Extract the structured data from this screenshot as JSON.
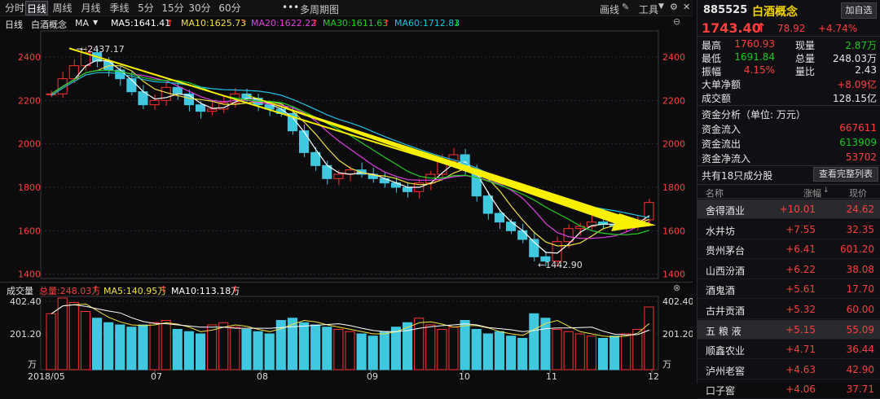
{
  "toolbar": {
    "tabs": [
      "分时",
      "日线",
      "周线",
      "月线",
      "季线",
      "5分",
      "15分",
      "30分",
      "60分"
    ],
    "active_tab": "日线",
    "more_icon": "ellipsis-icon",
    "multi_period": "多周期图",
    "draw_line": "画线",
    "tools": "工具"
  },
  "indicator_bar": {
    "period": "日线",
    "name": "白酒概念",
    "ma_label": "MA",
    "ma5": "MA5:1641.41",
    "ma10": "MA10:1625.73",
    "ma20": "MA20:1622.22",
    "ma30": "MA30:1611.63",
    "ma60": "MA60:1712.83",
    "colors": {
      "ma5": "#ffffff",
      "ma10": "#f0e040",
      "ma20": "#e040e0",
      "ma30": "#20d020",
      "ma60": "#20c0e0"
    }
  },
  "volume_bar": {
    "title": "成交量",
    "total": "总量:248.03万",
    "ma5": "MA5:140.95万",
    "ma10": "MA10:113.18万"
  },
  "price_axis": {
    "ticks": [
      "2400",
      "2200",
      "2000",
      "1800",
      "1600",
      "1400"
    ]
  },
  "volume_axis": {
    "ticks": [
      "402.40",
      "201.20",
      "万"
    ]
  },
  "date_axis": {
    "ticks": [
      "2018/05",
      "07",
      "08",
      "09",
      "10",
      "11",
      "12"
    ]
  },
  "annotations": {
    "high": "2437.17",
    "low": "1442.90"
  },
  "chart_data": {
    "type": "candlestick",
    "title": "白酒概念 日线",
    "x_labels": [
      "2018/05",
      "07",
      "08",
      "09",
      "10",
      "11",
      "12"
    ],
    "ylim": [
      1380,
      2520
    ],
    "series": [
      {
        "name": "MA5",
        "latest": 1641.41
      },
      {
        "name": "MA10",
        "latest": 1625.73
      },
      {
        "name": "MA20",
        "latest": 1622.22
      },
      {
        "name": "MA30",
        "latest": 1611.63
      },
      {
        "name": "MA60",
        "latest": 1712.83
      }
    ],
    "close_path": [
      2230,
      2300,
      2360,
      2420,
      2380,
      2340,
      2300,
      2240,
      2180,
      2200,
      2260,
      2230,
      2180,
      2150,
      2160,
      2190,
      2230,
      2210,
      2180,
      2160,
      2140,
      2060,
      1960,
      1900,
      1840,
      1860,
      1880,
      1860,
      1840,
      1820,
      1800,
      1780,
      1820,
      1860,
      1920,
      1950,
      1880,
      1760,
      1680,
      1640,
      1600,
      1560,
      1480,
      1460,
      1550,
      1610,
      1620,
      1640,
      1630,
      1620,
      1630,
      1650,
      1730
    ],
    "volume_path": [
      250,
      320,
      300,
      260,
      230,
      210,
      200,
      190,
      200,
      210,
      220,
      180,
      170,
      160,
      200,
      210,
      190,
      180,
      170,
      160,
      220,
      230,
      210,
      200,
      190,
      180,
      170,
      160,
      150,
      170,
      190,
      210,
      230,
      200,
      180,
      190,
      220,
      180,
      160,
      170,
      150,
      140,
      250,
      230,
      180,
      170,
      160,
      150,
      140,
      150,
      160,
      180,
      280
    ],
    "annotations": [
      {
        "label": "2437.17",
        "x_label": "2018/05"
      },
      {
        "label": "1442.90",
        "x_label": "10"
      }
    ]
  },
  "panel": {
    "code": "885525",
    "name": "白酒概念",
    "add_button": "加自选",
    "price": "1743.40",
    "change": "78.92",
    "change_pct": "+4.74%",
    "stats": [
      {
        "l1": "最高",
        "v1": "1760.93",
        "l2": "现量",
        "v2": "2.87万"
      },
      {
        "l1": "最低",
        "v1": "1691.84",
        "l2": "总量",
        "v2": "248.03万"
      },
      {
        "l1": "振幅",
        "v1": "4.15%",
        "l2": "量比",
        "v2": "2.43"
      }
    ],
    "big_net": {
      "label": "大单净额",
      "value": "+8.09亿"
    },
    "turnover": {
      "label": "成交额",
      "value": "128.15亿"
    },
    "fund_title": "资金分析（单位: 万元）",
    "fund_rows": [
      {
        "label": "资金流入",
        "value": "667611"
      },
      {
        "label": "资金流出",
        "value": "613909"
      },
      {
        "label": "资金净流入",
        "value": "53702"
      }
    ],
    "stocks_header": "共有18只成分股",
    "view_full": "查看完整列表",
    "table_headers": [
      "名称",
      "涨幅",
      "现价"
    ],
    "stocks": [
      {
        "name": "舍得酒业",
        "pct": "+10.01",
        "price": "24.62"
      },
      {
        "name": "水井坊",
        "pct": "+7.55",
        "price": "32.35"
      },
      {
        "name": "贵州茅台",
        "pct": "+6.41",
        "price": "601.20"
      },
      {
        "name": "山西汾酒",
        "pct": "+6.22",
        "price": "38.08"
      },
      {
        "name": "酒鬼酒",
        "pct": "+5.61",
        "price": "17.70"
      },
      {
        "name": "古井贡酒",
        "pct": "+5.32",
        "price": "60.00"
      },
      {
        "name": "五 粮 液",
        "pct": "+5.15",
        "price": "55.09"
      },
      {
        "name": "顺鑫农业",
        "pct": "+4.71",
        "price": "36.44"
      },
      {
        "name": "泸州老窖",
        "pct": "+4.63",
        "price": "42.90"
      },
      {
        "name": "口子窖",
        "pct": "+4.06",
        "price": "37.71"
      }
    ]
  }
}
